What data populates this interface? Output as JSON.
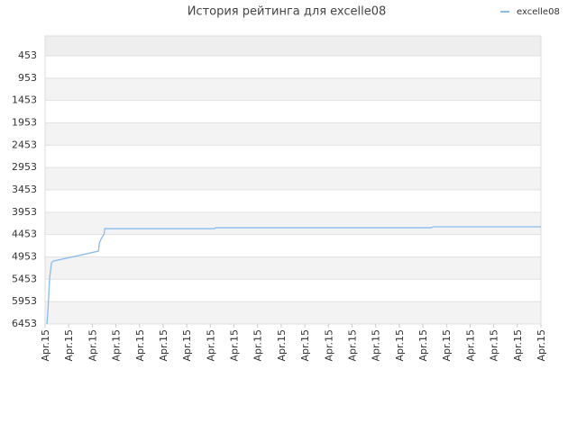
{
  "chart_data": {
    "type": "line",
    "title": "История рейтинга для excelle08",
    "x": [
      0.08,
      0.12,
      0.19,
      0.27,
      0.35,
      2.26,
      2.3,
      2.38,
      2.5,
      2.53,
      7.18,
      7.22,
      16.35,
      16.43,
      21.0
    ],
    "series": [
      {
        "name": "excelle08",
        "color": "#88bbee",
        "values": [
          6453,
          6152,
          5447,
          5085,
          5045,
          4823,
          4642,
          4541,
          4441,
          4320,
          4320,
          4300,
          4300,
          4279,
          4279
        ]
      }
    ],
    "xlim": [
      0,
      21
    ],
    "xticks": [
      {
        "value": 0,
        "label": "Apr.15"
      },
      {
        "value": 1,
        "label": "Apr.15"
      },
      {
        "value": 2,
        "label": "Apr.15"
      },
      {
        "value": 3,
        "label": "Apr.15"
      },
      {
        "value": 4,
        "label": "Apr.15"
      },
      {
        "value": 5,
        "label": "Apr.15"
      },
      {
        "value": 6,
        "label": "Apr.15"
      },
      {
        "value": 7,
        "label": "Apr.15"
      },
      {
        "value": 8,
        "label": "Apr.15"
      },
      {
        "value": 9,
        "label": "Apr.15"
      },
      {
        "value": 10,
        "label": "Apr.15"
      },
      {
        "value": 11,
        "label": "Apr.15"
      },
      {
        "value": 12,
        "label": "Apr.15"
      },
      {
        "value": 13,
        "label": "Apr.15"
      },
      {
        "value": 14,
        "label": "Apr.15"
      },
      {
        "value": 15,
        "label": "Apr.15"
      },
      {
        "value": 16,
        "label": "Apr.15"
      },
      {
        "value": 17,
        "label": "Apr.15"
      },
      {
        "value": 18,
        "label": "Apr.15"
      },
      {
        "value": 19,
        "label": "Apr.15"
      },
      {
        "value": 20,
        "label": "Apr.15"
      },
      {
        "value": 21,
        "label": "Apr.15"
      }
    ],
    "ylim": [
      10,
      6453
    ],
    "y_inverted": true,
    "yticks": [
      453,
      953,
      1453,
      1953,
      2453,
      2953,
      3453,
      3953,
      4453,
      4953,
      5453,
      5953,
      6453
    ],
    "grid": true,
    "legend": "top-right"
  }
}
